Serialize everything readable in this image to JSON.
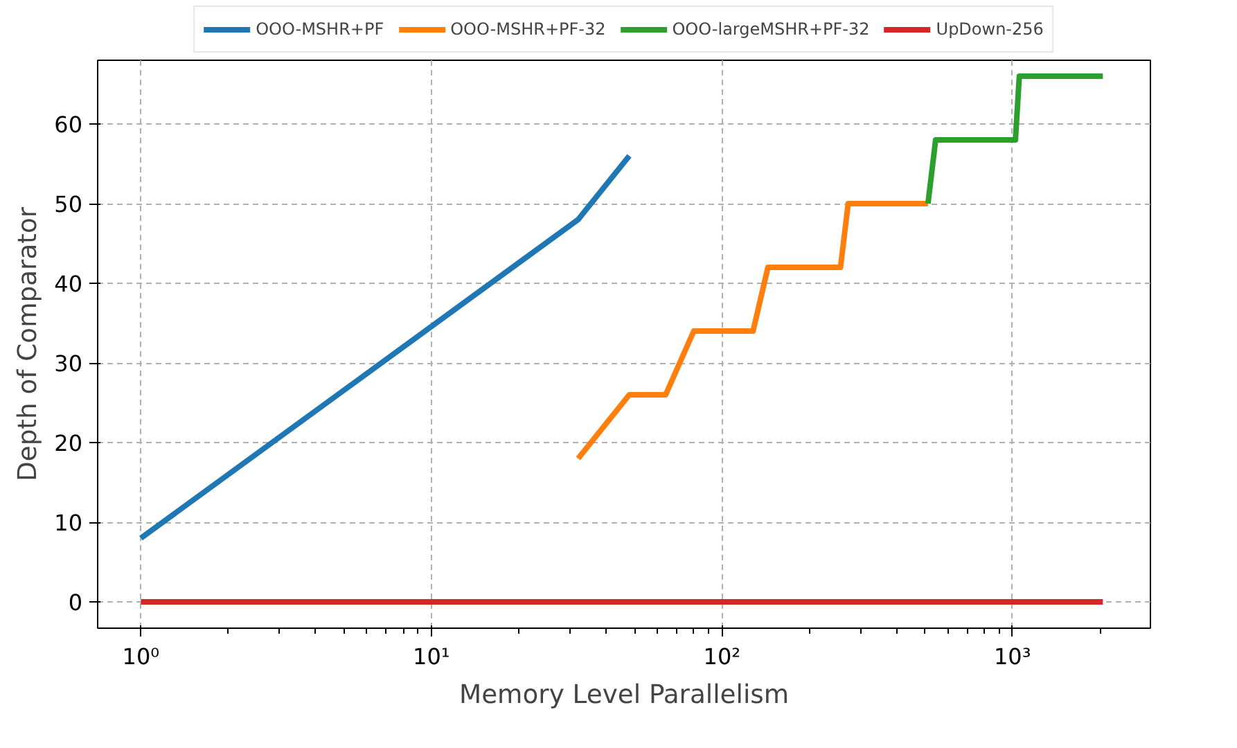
{
  "chart_data": {
    "type": "line",
    "xlabel": "Memory Level Parallelism",
    "ylabel": "Depth of Comparator",
    "log": "x",
    "xlim": [
      0.71,
      2985
    ],
    "xticks": [
      {
        "value": 1,
        "label": "10⁰"
      },
      {
        "value": 10,
        "label": "10¹"
      },
      {
        "value": 100,
        "label": "10²"
      },
      {
        "value": 1000,
        "label": "10³"
      }
    ],
    "ylim": [
      -3.3,
      68
    ],
    "yticks": [
      0,
      10,
      20,
      30,
      40,
      50,
      60
    ],
    "grid": true,
    "legend": "top",
    "line_style": "solid",
    "marker": "none",
    "series": [
      {
        "name": "OOO-MSHR+PF",
        "color": "#1f77b4",
        "x": [
          1,
          32,
          48
        ],
        "values": [
          8,
          48,
          56
        ]
      },
      {
        "name": "OOO-MSHR+PF-32",
        "color": "#ff7f0e",
        "x": [
          32,
          48,
          64,
          80,
          128,
          144,
          256,
          272,
          512
        ],
        "values": [
          18,
          26,
          26,
          34,
          34,
          42,
          42,
          50,
          50
        ]
      },
      {
        "name": "OOO-largeMSHR+PF-32",
        "color": "#2ca02c",
        "x": [
          512,
          544,
          1024,
          1056,
          2048
        ],
        "values": [
          50,
          58,
          58,
          66,
          66
        ]
      },
      {
        "name": "UpDown-256",
        "color": "#d62728",
        "x": [
          1,
          2048
        ],
        "values": [
          0,
          0
        ]
      }
    ]
  }
}
